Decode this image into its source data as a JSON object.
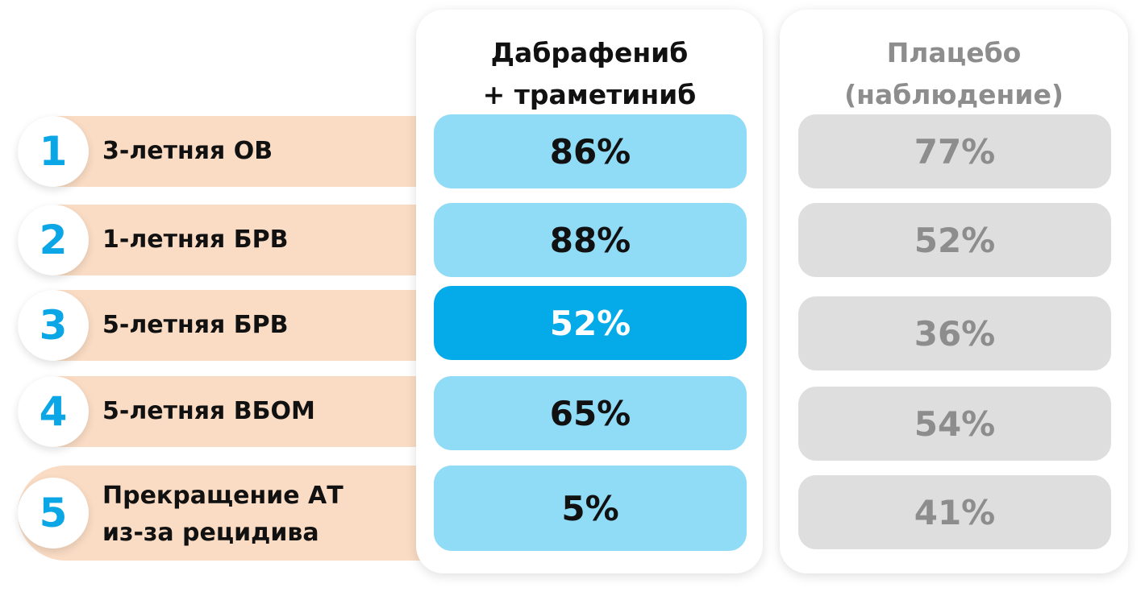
{
  "columns": {
    "treatment_line1": "Дабрафениб",
    "treatment_line2": "+ траметиниб",
    "placebo_line1": "Плацебо",
    "placebo_line2": "(наблюдение)"
  },
  "rows": [
    {
      "num": "1",
      "label": "3-летняя ОВ",
      "treatment": "86%",
      "placebo": "77%"
    },
    {
      "num": "2",
      "label": "1-летняя БРВ",
      "treatment": "88%",
      "placebo": "52%"
    },
    {
      "num": "3",
      "label": "5-летняя БРВ",
      "treatment": "52%",
      "placebo": "36%"
    },
    {
      "num": "4",
      "label": "5-летняя ВБОМ",
      "treatment": "65%",
      "placebo": "54%"
    },
    {
      "num": "5",
      "label": "Прекращение АТ\nиз-за рецидива",
      "treatment": "5%",
      "placebo": "41%"
    }
  ],
  "colors": {
    "accent": "#0ba6e6",
    "treatment_cell": "#90dbf5",
    "treatment_highlight": "#05aae8",
    "placebo_cell": "#dedede",
    "placebo_text": "#8d8d8d",
    "row_band": "#fadcc4"
  }
}
